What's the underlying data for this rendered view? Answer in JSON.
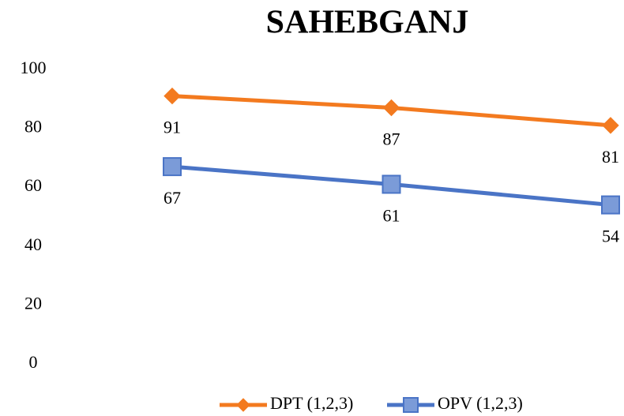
{
  "chart_data": {
    "type": "line",
    "title": "SAHEBGANJ",
    "categories": [
      null,
      null,
      null
    ],
    "series": [
      {
        "name": "DPT (1,2,3)",
        "color": "#f37a1f",
        "marker": "diamond",
        "values": [
          91,
          87,
          81
        ]
      },
      {
        "name": "OPV (1,2,3)",
        "color": "#4a74c6",
        "marker": "square",
        "values": [
          67,
          61,
          54
        ]
      }
    ],
    "ylim": [
      0,
      100
    ],
    "yticks": [
      0,
      20,
      40,
      60,
      80,
      100
    ],
    "grid": false,
    "legend": "bottom"
  }
}
